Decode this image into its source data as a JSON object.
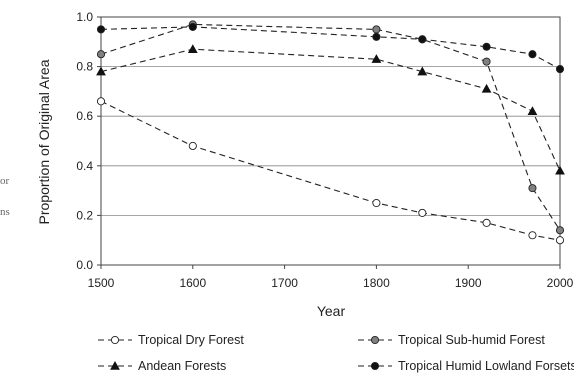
{
  "margin_fragments": [
    "or",
    "ns"
  ],
  "chart_data": {
    "type": "line",
    "title": "",
    "xlabel": "Year",
    "ylabel": "Proportion of Original Area",
    "xlim": [
      1500,
      2000
    ],
    "ylim": [
      0.0,
      1.0
    ],
    "x_ticks": [
      "1500",
      "1600",
      "1700",
      "1800",
      "1900",
      "2000"
    ],
    "y_ticks": [
      "0.0",
      "0.2",
      "0.4",
      "0.6",
      "0.8",
      "1.0"
    ],
    "grid": "horizontal",
    "legend_position": "bottom",
    "series": [
      {
        "name": "Tropical Dry Forest",
        "marker": "circle-open",
        "color": "#ffffff",
        "points": [
          [
            1500,
            0.66
          ],
          [
            1600,
            0.48
          ],
          [
            1800,
            0.25
          ],
          [
            1850,
            0.21
          ],
          [
            1920,
            0.17
          ],
          [
            1970,
            0.12
          ],
          [
            2000,
            0.1
          ]
        ]
      },
      {
        "name": "Tropical Sub-humid Forest",
        "marker": "circle-gray",
        "color": "#808080",
        "points": [
          [
            1500,
            0.85
          ],
          [
            1600,
            0.97
          ],
          [
            1800,
            0.95
          ],
          [
            1850,
            0.91
          ],
          [
            1920,
            0.82
          ],
          [
            1970,
            0.31
          ],
          [
            2000,
            0.14
          ]
        ]
      },
      {
        "name": "Andean Forests",
        "marker": "triangle",
        "color": "#111111",
        "points": [
          [
            1500,
            0.78
          ],
          [
            1600,
            0.87
          ],
          [
            1800,
            0.83
          ],
          [
            1850,
            0.78
          ],
          [
            1920,
            0.71
          ],
          [
            1970,
            0.62
          ],
          [
            2000,
            0.38
          ]
        ]
      },
      {
        "name": "Tropical Humid Lowland Forsets",
        "marker": "circle-black",
        "color": "#111111",
        "points": [
          [
            1500,
            0.95
          ],
          [
            1600,
            0.96
          ],
          [
            1800,
            0.92
          ],
          [
            1850,
            0.91
          ],
          [
            1920,
            0.88
          ],
          [
            1970,
            0.85
          ],
          [
            2000,
            0.79
          ]
        ]
      }
    ]
  }
}
